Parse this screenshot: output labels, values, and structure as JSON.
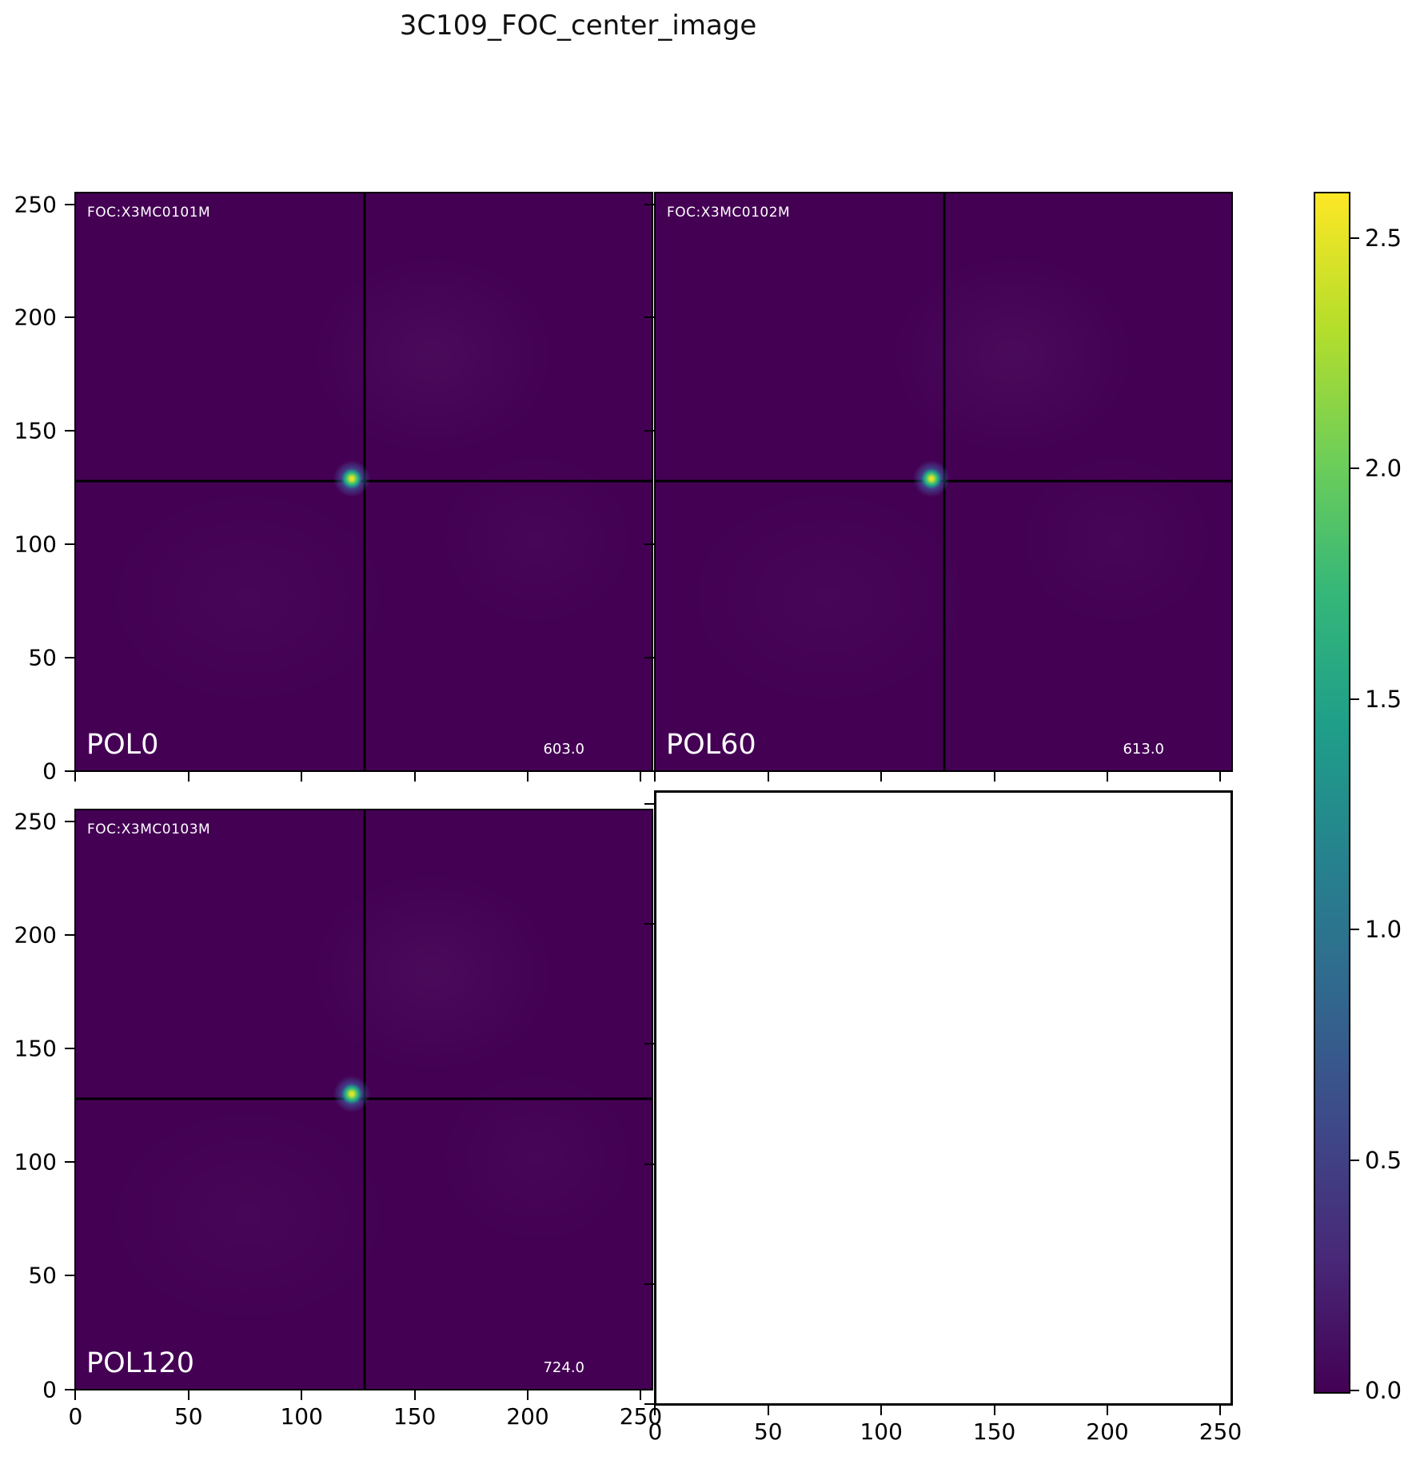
{
  "title": "3C109_FOC_center_image",
  "panels": [
    {
      "foc_label": "FOC:X3MC0101M",
      "pol_label": "POL0",
      "peak_value": "603.0",
      "crosshair_x": 128,
      "crosshair_y": 128,
      "spot_x": 122,
      "spot_y": 129
    },
    {
      "foc_label": "FOC:X3MC0102M",
      "pol_label": "POL60",
      "peak_value": "613.0",
      "crosshair_x": 128,
      "crosshair_y": 128,
      "spot_x": 122,
      "spot_y": 129
    },
    {
      "foc_label": "FOC:X3MC0103M",
      "pol_label": "POL120",
      "peak_value": "724.0",
      "crosshair_x": 128,
      "crosshair_y": 128,
      "spot_x": 122,
      "spot_y": 130
    },
    {
      "empty": true
    }
  ],
  "axis": {
    "tick_values": [
      0,
      50,
      100,
      150,
      200,
      250
    ],
    "tick_labels": [
      "0",
      "50",
      "100",
      "150",
      "200",
      "250"
    ],
    "data_range": [
      0,
      256
    ]
  },
  "colorbar": {
    "colormap": "viridis",
    "vmin": 0.0,
    "vmax": 2.6,
    "tick_values": [
      0.0,
      0.5,
      1.0,
      1.5,
      2.0,
      2.5
    ],
    "tick_labels": [
      "0.0",
      "0.5",
      "1.0",
      "1.5",
      "2.0",
      "2.5"
    ]
  },
  "colors": {
    "image_background": "#440154",
    "crosshair": "#000000",
    "spot_core": "#c8e02a",
    "spot_halo": "#426cb2"
  },
  "chart_data": [
    {
      "type": "heatmap",
      "panel": "POL0",
      "annotation": "FOC:X3MC0101M",
      "xlim": [
        0,
        256
      ],
      "ylim": [
        0,
        256
      ],
      "x_ticks": [
        0,
        50,
        100,
        150,
        200,
        250
      ],
      "y_ticks": [
        0,
        50,
        100,
        150,
        200,
        250
      ],
      "colormap": "viridis",
      "clim": [
        0.0,
        2.6
      ],
      "background_level": 0.0,
      "point_source": {
        "x": 122,
        "y": 129,
        "label": "603.0"
      },
      "crosshair": {
        "x": 128,
        "y": 128
      }
    },
    {
      "type": "heatmap",
      "panel": "POL60",
      "annotation": "FOC:X3MC0102M",
      "xlim": [
        0,
        256
      ],
      "ylim": [
        0,
        256
      ],
      "x_ticks": [
        0,
        50,
        100,
        150,
        200,
        250
      ],
      "y_ticks": [
        0,
        50,
        100,
        150,
        200,
        250
      ],
      "colormap": "viridis",
      "clim": [
        0.0,
        2.6
      ],
      "background_level": 0.0,
      "point_source": {
        "x": 122,
        "y": 129,
        "label": "613.0"
      },
      "crosshair": {
        "x": 128,
        "y": 128
      }
    },
    {
      "type": "heatmap",
      "panel": "POL120",
      "annotation": "FOC:X3MC0103M",
      "xlim": [
        0,
        256
      ],
      "ylim": [
        0,
        256
      ],
      "x_ticks": [
        0,
        50,
        100,
        150,
        200,
        250
      ],
      "y_ticks": [
        0,
        50,
        100,
        150,
        200,
        250
      ],
      "colormap": "viridis",
      "clim": [
        0.0,
        2.6
      ],
      "background_level": 0.0,
      "point_source": {
        "x": 122,
        "y": 130,
        "label": "724.0"
      },
      "crosshair": {
        "x": 128,
        "y": 128
      }
    },
    {
      "type": "heatmap",
      "panel": "empty",
      "xlim": [
        0,
        256
      ],
      "x_ticks": [
        0,
        50,
        100,
        150,
        200,
        250
      ],
      "data": null
    }
  ]
}
